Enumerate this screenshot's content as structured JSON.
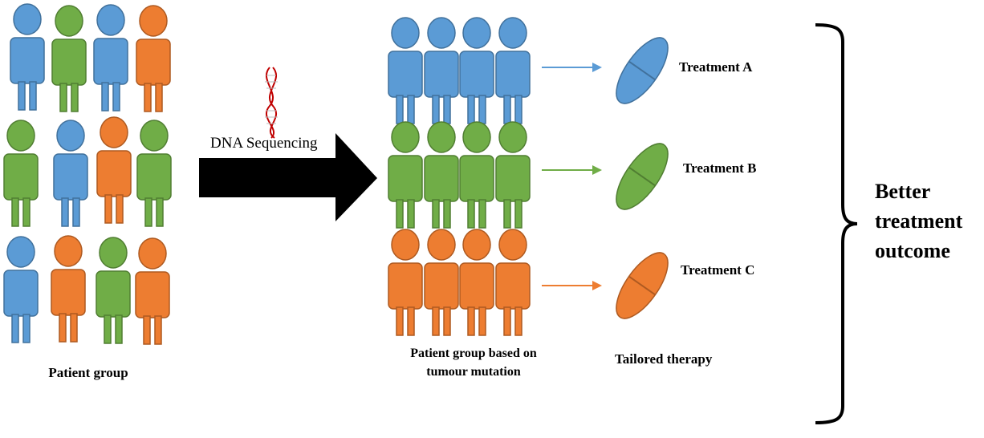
{
  "colors": {
    "blue": "#5B9BD5",
    "green": "#70AD47",
    "orange": "#ED7D31",
    "outline_blue": "#41719C",
    "outline_green": "#507E32",
    "outline_orange": "#AE5A21",
    "arrow": "#000000",
    "dna": "#C00000"
  },
  "icons": {
    "person": "person-icon",
    "pill": "capsule-icon",
    "dna": "dna-helix-icon",
    "big_arrow": "right-block-arrow-icon",
    "brace": "right-curly-brace-icon"
  },
  "patient_group": {
    "label": "Patient group",
    "rows": [
      [
        "blue",
        "green",
        "blue",
        "orange"
      ],
      [
        "green",
        "blue",
        "orange",
        "green"
      ],
      [
        "blue",
        "orange",
        "green",
        "orange"
      ]
    ]
  },
  "sequencing": {
    "label": "DNA Sequencing"
  },
  "stratified_group": {
    "label_line1": "Patient group based on",
    "label_line2": "tumour mutation",
    "rows": [
      [
        "blue",
        "blue",
        "blue",
        "blue"
      ],
      [
        "green",
        "green",
        "green",
        "green"
      ],
      [
        "orange",
        "orange",
        "orange",
        "orange"
      ]
    ]
  },
  "treatments": [
    {
      "label": "Treatment A",
      "color": "blue"
    },
    {
      "label": "Treatment B",
      "color": "green"
    },
    {
      "label": "Treatment C",
      "color": "orange"
    }
  ],
  "therapy_label": "Tailored therapy",
  "outcome": {
    "line1": "Better",
    "line2": "treatment",
    "line3": "outcome"
  }
}
